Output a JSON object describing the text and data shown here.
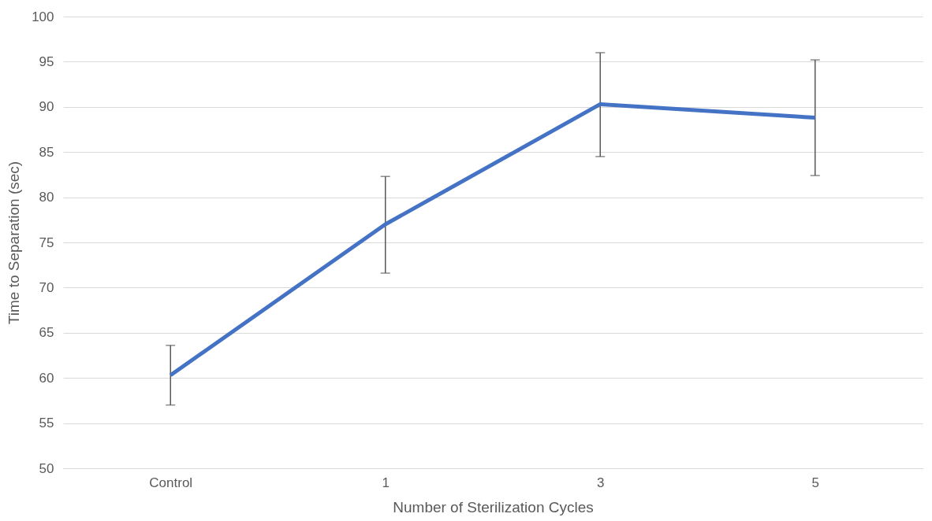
{
  "chart_data": {
    "type": "line",
    "xlabel": "Number of Sterilization Cycles",
    "ylabel": "Time to Separation (sec)",
    "categories": [
      "Control",
      "1",
      "3",
      "5"
    ],
    "series": [
      {
        "color": "#4472c4",
        "values": [
          60.3,
          77.0,
          90.3,
          88.8
        ],
        "errors": [
          [
            57.0,
            63.6
          ],
          [
            71.6,
            82.3
          ],
          [
            84.5,
            96.0
          ],
          [
            82.4,
            95.2
          ]
        ]
      }
    ],
    "ylim": [
      50,
      100
    ],
    "yticks": [
      50,
      55,
      60,
      65,
      70,
      75,
      80,
      85,
      90,
      95,
      100
    ],
    "grid": "y",
    "marker": "none",
    "line_style": "solid"
  }
}
